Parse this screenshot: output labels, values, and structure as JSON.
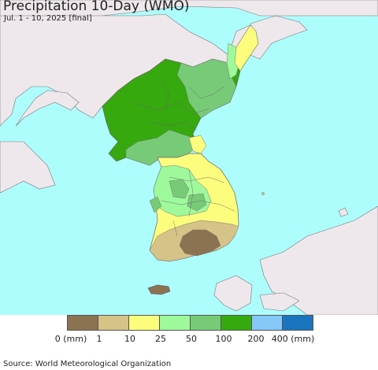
{
  "title": "Precipitation 10-Day (WMO)",
  "subtitle": "Jul. 1 - 10, 2025 [final]",
  "legend": {
    "colors": [
      "#8b7352",
      "#d6c387",
      "#fcfd7c",
      "#9ef99a",
      "#77cb77",
      "#35a90d",
      "#85c8f8",
      "#1b74be"
    ],
    "labels": [
      "0 (mm)",
      "1",
      "10",
      "25",
      "50",
      "100",
      "200",
      "400 (mm)"
    ]
  },
  "source": "Source: World Meteorological Organization",
  "map_colors": {
    "ocean": "#aefdfd",
    "foreign_land": "#eee8ec",
    "border": "#666666"
  }
}
